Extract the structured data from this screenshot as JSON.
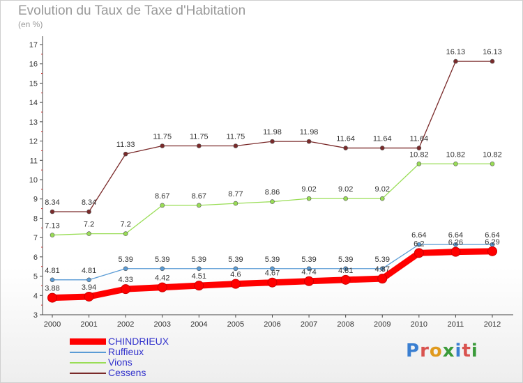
{
  "title": "Evolution du Taux de Taxe d'Habitation",
  "unit_label": "(en %)",
  "logo": {
    "text": "Proxiti",
    "colors": [
      "#3a7fd1",
      "#d9534f",
      "#e09a1e",
      "#3a9b3a",
      "#3a7fd1",
      "#d9534f",
      "#3a9b3a"
    ]
  },
  "chart_data": {
    "type": "line",
    "x": [
      "2000",
      "2001",
      "2002",
      "2003",
      "2004",
      "2005",
      "2006",
      "2007",
      "2008",
      "2009",
      "2010",
      "2011",
      "2012"
    ],
    "ylim": [
      3,
      17
    ],
    "yticks": [
      3,
      4,
      5,
      6,
      7,
      8,
      9,
      10,
      11,
      12,
      13,
      14,
      15,
      16,
      17
    ],
    "legend_position": "bottom-left",
    "grid": false,
    "series": [
      {
        "name": "CHINDRIEUX",
        "color": "#ff0000",
        "values": [
          3.88,
          3.94,
          4.33,
          4.42,
          4.51,
          4.6,
          4.67,
          4.74,
          4.81,
          4.87,
          6.2,
          6.26,
          6.29
        ],
        "labels": [
          "3.88",
          "3.94",
          "4.33",
          "4.42",
          "4.51",
          "4.6",
          "4.67",
          "4.74",
          "4.81",
          "4.87",
          "6.2",
          "6.26",
          "6.29"
        ]
      },
      {
        "name": "Ruffieux",
        "color": "#5a9bd5",
        "values": [
          4.81,
          4.81,
          5.39,
          5.39,
          5.39,
          5.39,
          5.39,
          5.39,
          5.39,
          5.39,
          6.64,
          6.64,
          6.64
        ],
        "labels": [
          "4.81",
          "4.81",
          "5.39",
          "5.39",
          "5.39",
          "5.39",
          "5.39",
          "5.39",
          "5.39",
          "5.39",
          "6.64",
          "6.64",
          "6.64"
        ]
      },
      {
        "name": "Vions",
        "color": "#99dd55",
        "values": [
          7.13,
          7.2,
          7.2,
          8.67,
          8.67,
          8.77,
          8.86,
          9.02,
          9.02,
          9.02,
          10.82,
          10.82,
          10.82
        ],
        "labels": [
          "7.13",
          "7.2",
          "7.2",
          "8.67",
          "8.67",
          "8.77",
          "8.86",
          "9.02",
          "9.02",
          "9.02",
          "10.82",
          "10.82",
          "10.82"
        ]
      },
      {
        "name": "Cessens",
        "color": "#7a2a2a",
        "values": [
          8.34,
          8.34,
          11.33,
          11.75,
          11.75,
          11.75,
          11.98,
          11.98,
          11.64,
          11.64,
          11.64,
          16.13,
          16.13
        ],
        "labels": [
          "8.34",
          "8.34",
          "11.33",
          "11.75",
          "11.75",
          "11.75",
          "11.98",
          "11.98",
          "11.64",
          "11.64",
          "11.64",
          "16.13",
          "16.13"
        ]
      }
    ]
  }
}
